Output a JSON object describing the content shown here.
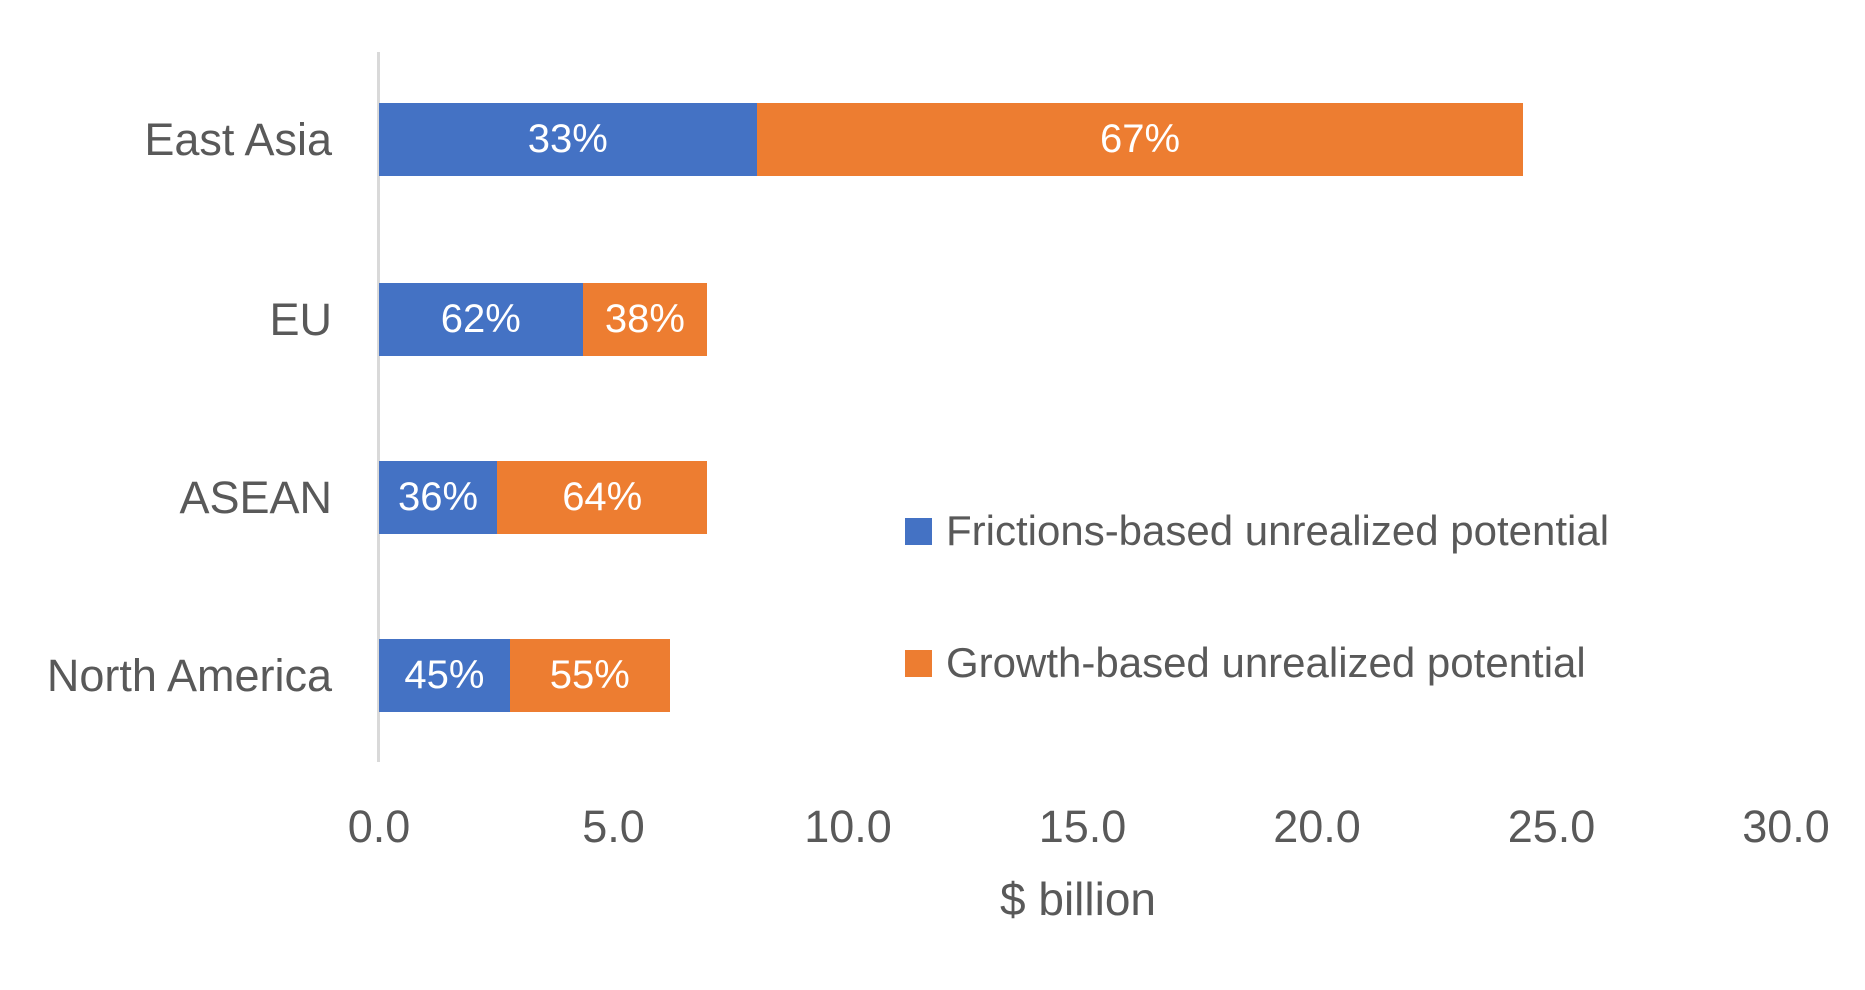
{
  "chart_data": {
    "type": "bar",
    "subtype": "horizontal-stacked",
    "title": "",
    "xlabel": "$ billion",
    "xlim": [
      0,
      30
    ],
    "x_ticks": [
      "0.0",
      "5.0",
      "10.0",
      "15.0",
      "20.0",
      "25.0",
      "30.0"
    ],
    "grid": false,
    "legend_position": "center-right",
    "colors": {
      "frictions": "#4472c4",
      "growth": "#ed7d31",
      "axis_line": "#d9d9d9",
      "text": "#595959",
      "bar_label_text": "#ffffff"
    },
    "legend": [
      {
        "label": "Frictions-based unrealized potential",
        "color": "#4472c4"
      },
      {
        "label": "Growth-based unrealized potential",
        "color": "#ed7d31"
      }
    ],
    "rows": [
      {
        "category": "East Asia",
        "total_billion": 24.4,
        "segments": [
          {
            "series": "Frictions-based unrealized potential",
            "pct": 33,
            "label": "33%",
            "value_billion": 8.1
          },
          {
            "series": "Growth-based unrealized potential",
            "pct": 67,
            "label": "67%",
            "value_billion": 16.3
          }
        ]
      },
      {
        "category": "EU",
        "total_billion": 7.0,
        "segments": [
          {
            "series": "Frictions-based unrealized potential",
            "pct": 62,
            "label": "62%",
            "value_billion": 4.3
          },
          {
            "series": "Growth-based unrealized potential",
            "pct": 38,
            "label": "38%",
            "value_billion": 2.7
          }
        ]
      },
      {
        "category": "ASEAN",
        "total_billion": 7.0,
        "segments": [
          {
            "series": "Frictions-based unrealized potential",
            "pct": 36,
            "label": "36%",
            "value_billion": 2.5
          },
          {
            "series": "Growth-based unrealized potential",
            "pct": 64,
            "label": "64%",
            "value_billion": 4.5
          }
        ]
      },
      {
        "category": "North America",
        "total_billion": 6.2,
        "segments": [
          {
            "series": "Frictions-based unrealized potential",
            "pct": 45,
            "label": "45%",
            "value_billion": 2.8
          },
          {
            "series": "Growth-based unrealized potential",
            "pct": 55,
            "label": "55%",
            "value_billion": 3.4
          }
        ]
      }
    ]
  }
}
